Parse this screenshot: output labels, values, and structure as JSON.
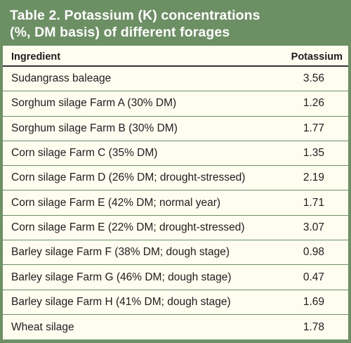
{
  "title": {
    "line1": "Table 2. Potassium (K) concentrations",
    "line2": "(%, DM basis) of different forages"
  },
  "columns": {
    "ingredient": "Ingredient",
    "potassium": "Potassium"
  },
  "rows": [
    {
      "ingredient": "Sudangrass baleage",
      "potassium": "3.56"
    },
    {
      "ingredient": "Sorghum silage Farm A (30% DM)",
      "potassium": "1.26"
    },
    {
      "ingredient": "Sorghum silage Farm B (30% DM)",
      "potassium": "1.77"
    },
    {
      "ingredient": "Corn silage Farm C (35% DM)",
      "potassium": "1.35"
    },
    {
      "ingredient": "Corn silage Farm D (26% DM; drought-stressed)",
      "potassium": "2.19"
    },
    {
      "ingredient": "Corn silage Farm E (42% DM; normal year)",
      "potassium": "1.71"
    },
    {
      "ingredient": "Corn silage Farm E (22% DM; drought-stressed)",
      "potassium": "3.07"
    },
    {
      "ingredient": "Barley silage Farm F (38% DM; dough stage)",
      "potassium": "0.98"
    },
    {
      "ingredient": "Barley silage Farm G (46% DM; dough stage)",
      "potassium": "0.47"
    },
    {
      "ingredient": "Barley silage Farm H (41% DM; dough stage)",
      "potassium": "1.69"
    },
    {
      "ingredient": "Wheat silage",
      "potassium": "1.78"
    }
  ],
  "colors": {
    "frame": "#6d8f64",
    "table_background": "#fffdf0",
    "text": "#1d1d1d"
  }
}
